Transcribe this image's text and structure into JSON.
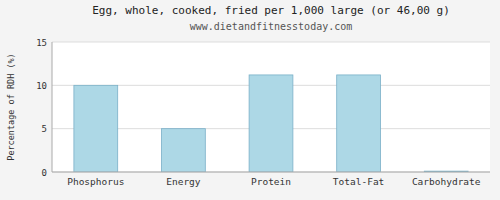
{
  "chart_data": {
    "type": "bar",
    "title": "Egg, whole, cooked, fried per 1,000 large (or 46,00 g)",
    "subtitle": "www.dietandfitnesstoday.com",
    "categories": [
      "Phosphorus",
      "Energy",
      "Protein",
      "Total-Fat",
      "Carbohydrate"
    ],
    "values": [
      10.0,
      5.0,
      11.2,
      11.2,
      0.1
    ],
    "color": "#add8e6",
    "ylabel": "Percentage of RDH (%)",
    "ylim": [
      0,
      15
    ],
    "yticks": [
      0,
      5,
      10,
      15
    ],
    "grid": true
  }
}
